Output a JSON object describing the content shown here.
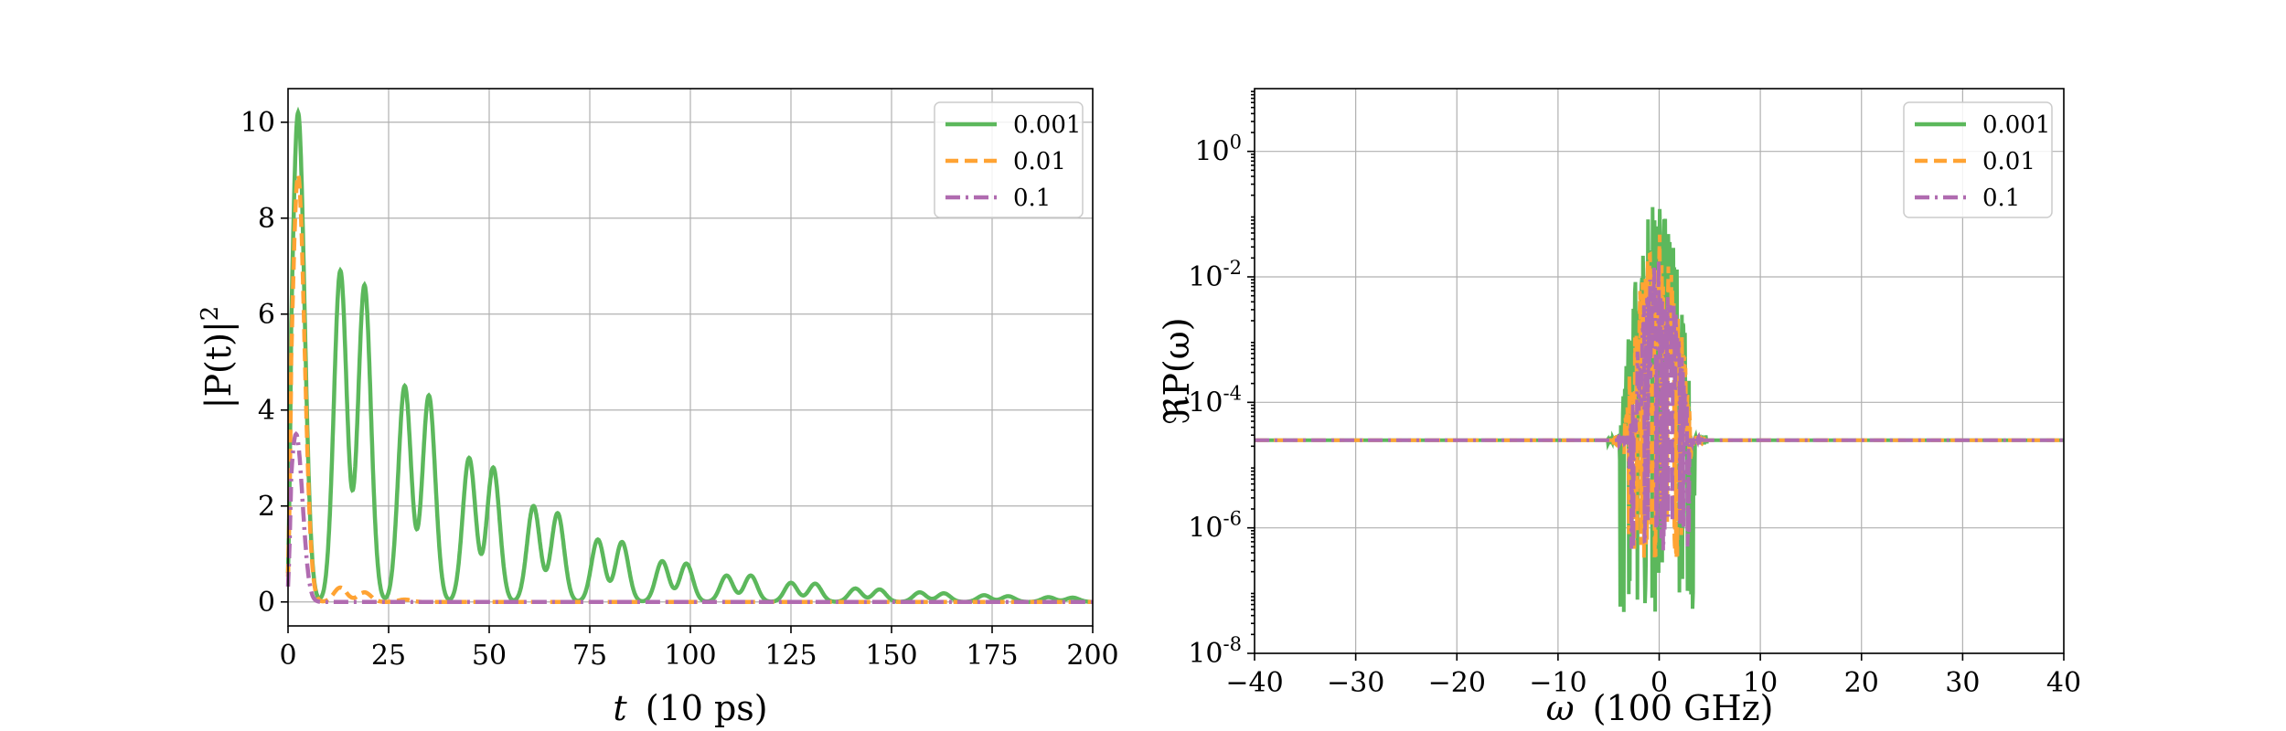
{
  "colors": {
    "series_0_001": "#5cb85c",
    "series_0_01": "#ffa333",
    "series_0_1": "#b06bb0"
  },
  "chart_data": [
    {
      "type": "line",
      "xlabel_var": "t",
      "xlabel_unit": "(10 ps)",
      "ylabel_main": "|P(t)|",
      "ylabel_sup": "2",
      "xlim": [
        0,
        200
      ],
      "ylim": [
        -0.5,
        10.7
      ],
      "xticks": [
        0,
        25,
        50,
        75,
        100,
        125,
        150,
        175,
        200
      ],
      "xtick_labels": [
        "0",
        "25",
        "50",
        "75",
        "100",
        "125",
        "150",
        "175",
        "200"
      ],
      "yticks": [
        0,
        2,
        4,
        6,
        8,
        10
      ],
      "ytick_labels": [
        "0",
        "2",
        "4",
        "6",
        "8",
        "10"
      ],
      "grid": true,
      "legend": "top-right",
      "series": [
        {
          "name": "0.001",
          "style": "solid",
          "color": "#5cb85c",
          "peaks": [
            [
              2.5,
              10.2
            ],
            [
              13,
              6.9
            ],
            [
              19,
              6.6
            ],
            [
              29,
              4.5
            ],
            [
              35,
              4.3
            ],
            [
              45,
              3.0
            ],
            [
              51,
              2.8
            ],
            [
              61,
              2.0
            ],
            [
              67,
              1.85
            ],
            [
              77,
              1.3
            ],
            [
              83,
              1.25
            ],
            [
              93,
              0.85
            ],
            [
              99,
              0.8
            ],
            [
              109,
              0.55
            ],
            [
              115,
              0.55
            ],
            [
              125,
              0.4
            ],
            [
              131,
              0.38
            ],
            [
              141,
              0.28
            ],
            [
              147,
              0.26
            ],
            [
              157,
              0.2
            ],
            [
              163,
              0.18
            ],
            [
              173,
              0.14
            ],
            [
              179,
              0.12
            ],
            [
              189,
              0.1
            ],
            [
              195,
              0.09
            ]
          ]
        },
        {
          "name": "0.01",
          "style": "dashed",
          "color": "#ffa333",
          "peaks": [
            [
              2.5,
              8.9
            ],
            [
              13,
              0.3
            ],
            [
              19,
              0.2
            ],
            [
              29,
              0.05
            ]
          ]
        },
        {
          "name": "0.1",
          "style": "dashdot",
          "color": "#b06bb0",
          "peaks": [
            [
              2.0,
              3.5
            ]
          ]
        }
      ]
    },
    {
      "type": "line",
      "xlabel_var": "ω",
      "xlabel_unit": "(100 GHz)",
      "ylabel_main": "ℜP(ω)",
      "xlim": [
        -40,
        40
      ],
      "ylim_log10": [
        -8,
        1.0
      ],
      "log_y": true,
      "xticks": [
        -40,
        -30,
        -20,
        -10,
        0,
        10,
        20,
        30,
        40
      ],
      "xtick_labels": [
        "−40",
        "−30",
        "−20",
        "−10",
        "0",
        "10",
        "20",
        "30",
        "40"
      ],
      "yticks_exp": [
        0,
        -2,
        -4,
        -6,
        -8
      ],
      "ytick_base": "10",
      "ytick_exp_labels": [
        "0",
        "-2",
        "-4",
        "-6",
        "-8"
      ],
      "grid": true,
      "legend": "top-right",
      "series": [
        {
          "name": "0.001",
          "style": "solid",
          "color": "#5cb85c",
          "baseline": 2.5e-05,
          "peak": 0.15,
          "trough": 4e-08,
          "band": [
            -4,
            3.5
          ]
        },
        {
          "name": "0.01",
          "style": "dashed",
          "color": "#ffa333",
          "baseline": 2.5e-05,
          "peak": 0.05,
          "trough": 3e-07,
          "band": [
            -3.5,
            3.2
          ]
        },
        {
          "name": "0.1",
          "style": "dashdot",
          "color": "#b06bb0",
          "baseline": 2.5e-05,
          "peak": 0.02,
          "trough": 4e-07,
          "band": [
            -3,
            3
          ]
        }
      ]
    }
  ]
}
